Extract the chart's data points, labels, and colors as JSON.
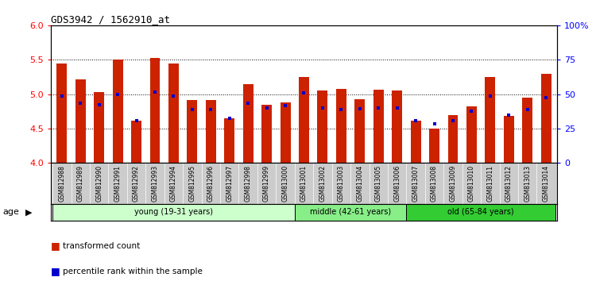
{
  "title": "GDS3942 / 1562910_at",
  "samples": [
    "GSM812988",
    "GSM812989",
    "GSM812990",
    "GSM812991",
    "GSM812992",
    "GSM812993",
    "GSM812994",
    "GSM812995",
    "GSM812996",
    "GSM812997",
    "GSM812998",
    "GSM812999",
    "GSM813000",
    "GSM813001",
    "GSM813002",
    "GSM813003",
    "GSM813004",
    "GSM813005",
    "GSM813006",
    "GSM813007",
    "GSM813008",
    "GSM813009",
    "GSM813010",
    "GSM813011",
    "GSM813012",
    "GSM813013",
    "GSM813014"
  ],
  "red_values": [
    5.45,
    5.22,
    5.03,
    5.5,
    4.62,
    5.52,
    5.45,
    4.92,
    4.92,
    4.65,
    5.15,
    4.85,
    4.88,
    5.25,
    5.05,
    5.08,
    4.93,
    5.07,
    5.05,
    4.62,
    4.5,
    4.7,
    4.82,
    5.25,
    4.68,
    4.95,
    5.3
  ],
  "blue_values": [
    4.97,
    4.87,
    4.84,
    5.0,
    4.62,
    5.03,
    4.97,
    4.78,
    4.78,
    4.65,
    4.87,
    4.8,
    4.83,
    5.02,
    4.8,
    4.78,
    4.79,
    4.8,
    4.8,
    4.62,
    4.57,
    4.62,
    4.75,
    4.97,
    4.7,
    4.78,
    4.95
  ],
  "ylim": [
    4.0,
    6.0
  ],
  "yticks": [
    4.0,
    4.5,
    5.0,
    5.5,
    6.0
  ],
  "y2ticks_labels": [
    "0",
    "25",
    "50",
    "75",
    "100%"
  ],
  "y2ticks_vals": [
    0,
    25,
    50,
    75,
    100
  ],
  "bar_color": "#cc2200",
  "dot_color": "#0000cc",
  "groups": [
    {
      "label": "young (19-31 years)",
      "start": 0,
      "end": 13,
      "color": "#ccffcc"
    },
    {
      "label": "middle (42-61 years)",
      "start": 13,
      "end": 19,
      "color": "#88ee88"
    },
    {
      "label": "old (65-84 years)",
      "start": 19,
      "end": 27,
      "color": "#33cc33"
    }
  ],
  "legend_red": "transformed count",
  "legend_blue": "percentile rank within the sample",
  "tick_bg": "#cccccc",
  "gridline_color": "#000000",
  "gridline_vals": [
    4.5,
    5.0,
    5.5
  ]
}
